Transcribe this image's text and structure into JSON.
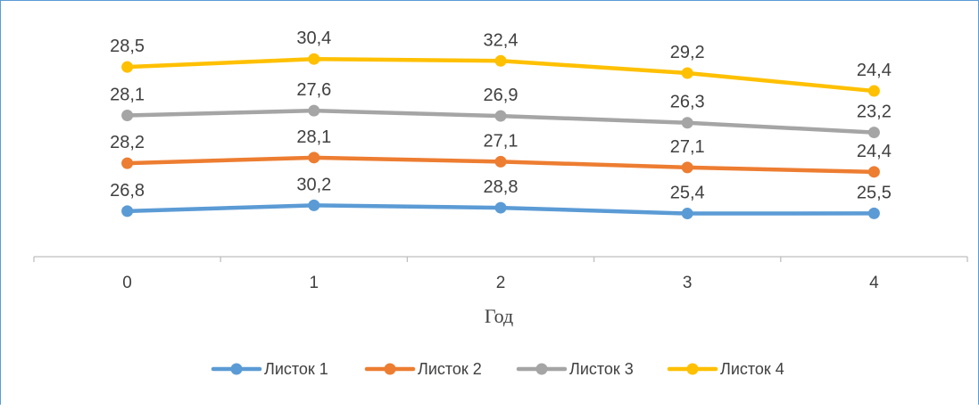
{
  "chart_data": {
    "type": "line",
    "title": "",
    "xlabel": "Год",
    "ylabel": "",
    "categories": [
      "0",
      "1",
      "2",
      "3",
      "4"
    ],
    "series": [
      {
        "name": "Листок 1",
        "color": "#5b9bd5",
        "values": [
          26.8,
          30.2,
          28.8,
          25.4,
          25.5
        ],
        "labels": [
          "26,8",
          "30,2",
          "28,8",
          "25,4",
          "25,5"
        ]
      },
      {
        "name": "Листок 2",
        "color": "#ed7d31",
        "values": [
          28.2,
          28.1,
          27.1,
          27.1,
          24.4
        ],
        "labels": [
          "28,2",
          "28,1",
          "27,1",
          "27,1",
          "24,4"
        ]
      },
      {
        "name": "Листок 3",
        "color": "#a5a5a5",
        "values": [
          28.1,
          27.6,
          26.9,
          26.3,
          23.2
        ],
        "labels": [
          "28,1",
          "27,6",
          "26,9",
          "26,3",
          "23,2"
        ]
      },
      {
        "name": "Листок 4",
        "color": "#ffc000",
        "values": [
          28.5,
          30.4,
          32.4,
          29.2,
          24.4
        ],
        "labels": [
          "28,5",
          "30,4",
          "32,4",
          "29,2",
          "24,4"
        ]
      }
    ],
    "stacked": true,
    "grid": false,
    "legend_position": "bottom"
  }
}
